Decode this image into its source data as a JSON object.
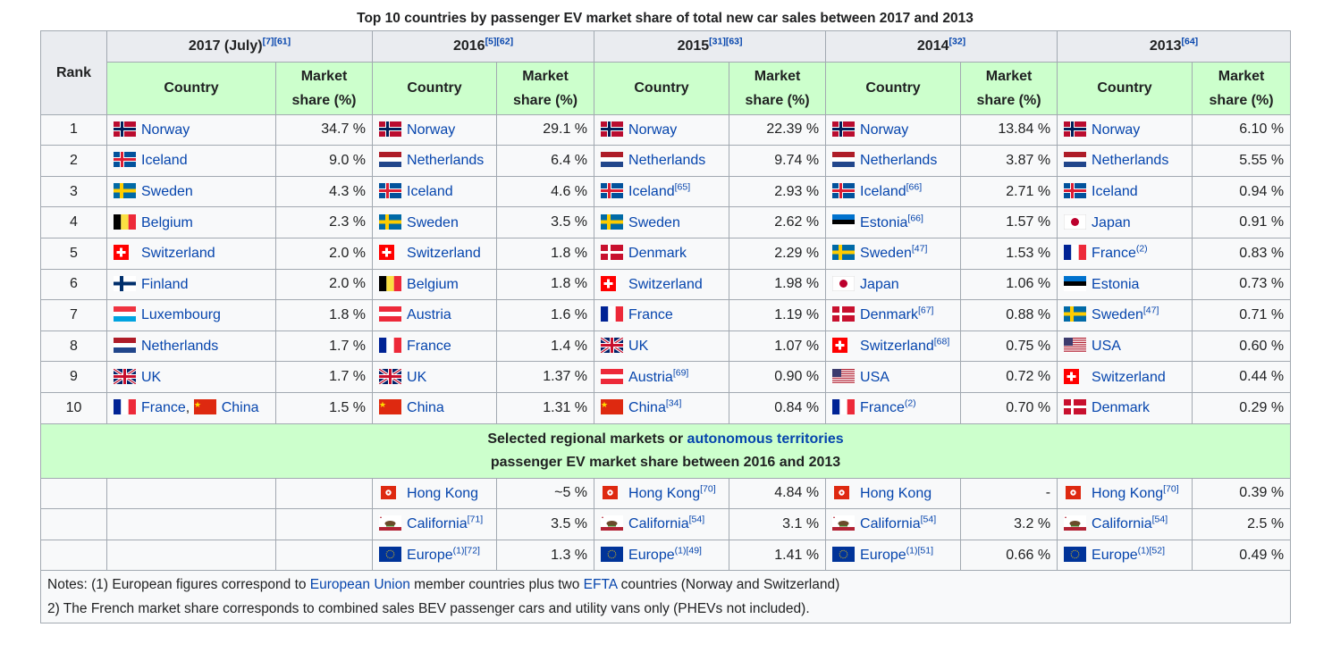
{
  "caption": "Top 10 countries by passenger EV market share of total new car sales between 2017 and 2013",
  "header": {
    "rank": "Rank",
    "country": "Country",
    "share_line1": "Market",
    "share_line2": "share (%)",
    "years": [
      {
        "label": "2017 (July)",
        "refs": "[7][61]"
      },
      {
        "label": "2016",
        "refs": "[5][62]"
      },
      {
        "label": "2015",
        "refs": "[31][63]"
      },
      {
        "label": "2014",
        "refs": "[32]"
      },
      {
        "label": "2013",
        "refs": "[64]"
      }
    ]
  },
  "rows": [
    {
      "rank": "1",
      "cells": [
        {
          "flag": "norway",
          "country": "Norway",
          "ref": "",
          "share": "34.7 %"
        },
        {
          "flag": "norway",
          "country": "Norway",
          "ref": "",
          "share": "29.1 %"
        },
        {
          "flag": "norway",
          "country": "Norway",
          "ref": "",
          "share": "22.39 %"
        },
        {
          "flag": "norway",
          "country": "Norway",
          "ref": "",
          "share": "13.84 %"
        },
        {
          "flag": "norway",
          "country": "Norway",
          "ref": "",
          "share": "6.10 %"
        }
      ]
    },
    {
      "rank": "2",
      "cells": [
        {
          "flag": "iceland",
          "country": "Iceland",
          "ref": "",
          "share": "9.0 %"
        },
        {
          "flag": "netherlands",
          "country": "Netherlands",
          "ref": "",
          "share": "6.4 %"
        },
        {
          "flag": "netherlands",
          "country": "Netherlands",
          "ref": "",
          "share": "9.74 %"
        },
        {
          "flag": "netherlands",
          "country": "Netherlands",
          "ref": "",
          "share": "3.87 %"
        },
        {
          "flag": "netherlands",
          "country": "Netherlands",
          "ref": "",
          "share": "5.55 %"
        }
      ]
    },
    {
      "rank": "3",
      "cells": [
        {
          "flag": "sweden",
          "country": "Sweden",
          "ref": "",
          "share": "4.3 %"
        },
        {
          "flag": "iceland",
          "country": "Iceland",
          "ref": "",
          "share": "4.6 %"
        },
        {
          "flag": "iceland",
          "country": "Iceland",
          "ref": "[65]",
          "share": "2.93 %"
        },
        {
          "flag": "iceland",
          "country": "Iceland",
          "ref": "[66]",
          "share": "2.71 %"
        },
        {
          "flag": "iceland",
          "country": "Iceland",
          "ref": "",
          "share": "0.94 %"
        }
      ]
    },
    {
      "rank": "4",
      "cells": [
        {
          "flag": "belgium",
          "country": "Belgium",
          "ref": "",
          "share": "2.3 %"
        },
        {
          "flag": "sweden",
          "country": "Sweden",
          "ref": "",
          "share": "3.5 %"
        },
        {
          "flag": "sweden",
          "country": "Sweden",
          "ref": "",
          "share": "2.62 %"
        },
        {
          "flag": "estonia",
          "country": "Estonia",
          "ref": "[66]",
          "share": "1.57 %"
        },
        {
          "flag": "japan",
          "country": "Japan",
          "ref": "",
          "share": "0.91 %"
        }
      ]
    },
    {
      "rank": "5",
      "cells": [
        {
          "flag": "switzerland",
          "country": "Switzerland",
          "ref": "",
          "share": "2.0 %"
        },
        {
          "flag": "switzerland",
          "country": "Switzerland",
          "ref": "",
          "share": "1.8 %"
        },
        {
          "flag": "denmark",
          "country": "Denmark",
          "ref": "",
          "share": "2.29 %"
        },
        {
          "flag": "sweden",
          "country": "Sweden",
          "ref": "[47]",
          "share": "1.53 %"
        },
        {
          "flag": "france",
          "country": "France",
          "ref": "(2)",
          "share": "0.83 %"
        }
      ]
    },
    {
      "rank": "6",
      "cells": [
        {
          "flag": "finland",
          "country": "Finland",
          "ref": "",
          "share": "2.0 %"
        },
        {
          "flag": "belgium",
          "country": "Belgium",
          "ref": "",
          "share": "1.8 %"
        },
        {
          "flag": "switzerland",
          "country": "Switzerland",
          "ref": "",
          "share": "1.98 %"
        },
        {
          "flag": "japan",
          "country": "Japan",
          "ref": "",
          "share": "1.06 %"
        },
        {
          "flag": "estonia",
          "country": "Estonia",
          "ref": "",
          "share": "0.73 %"
        }
      ]
    },
    {
      "rank": "7",
      "cells": [
        {
          "flag": "luxembourg",
          "country": "Luxembourg",
          "ref": "",
          "share": "1.8 %"
        },
        {
          "flag": "austria",
          "country": "Austria",
          "ref": "",
          "share": "1.6 %"
        },
        {
          "flag": "france",
          "country": "France",
          "ref": "",
          "share": "1.19 %"
        },
        {
          "flag": "denmark",
          "country": "Denmark",
          "ref": "[67]",
          "share": "0.88 %"
        },
        {
          "flag": "sweden",
          "country": "Sweden",
          "ref": "[47]",
          "share": "0.71 %"
        }
      ]
    },
    {
      "rank": "8",
      "cells": [
        {
          "flag": "netherlands",
          "country": "Netherlands",
          "ref": "",
          "share": "1.7 %"
        },
        {
          "flag": "france",
          "country": "France",
          "ref": "",
          "share": "1.4 %"
        },
        {
          "flag": "uk",
          "country": "UK",
          "ref": "",
          "share": "1.07 %"
        },
        {
          "flag": "switzerland",
          "country": "Switzerland",
          "ref": "[68]",
          "share": "0.75 %"
        },
        {
          "flag": "usa",
          "country": "USA",
          "ref": "",
          "share": "0.60 %"
        }
      ]
    },
    {
      "rank": "9",
      "cells": [
        {
          "flag": "uk",
          "country": "UK",
          "ref": "",
          "share": "1.7 %"
        },
        {
          "flag": "uk",
          "country": "UK",
          "ref": "",
          "share": "1.37 %"
        },
        {
          "flag": "austria",
          "country": "Austria",
          "ref": "[69]",
          "share": "0.90 %"
        },
        {
          "flag": "usa",
          "country": "USA",
          "ref": "",
          "share": "0.72 %"
        },
        {
          "flag": "switzerland",
          "country": "Switzerland",
          "ref": "",
          "share": "0.44 %"
        }
      ]
    },
    {
      "rank": "10",
      "cells": [
        {
          "flag": "france",
          "country": "France",
          "ref": "",
          "share": "1.5 %",
          "extra_flag": "china",
          "extra_country": "China"
        },
        {
          "flag": "china",
          "country": "China",
          "ref": "",
          "share": "1.31 %"
        },
        {
          "flag": "china",
          "country": "China",
          "ref": "[34]",
          "share": "0.84 %"
        },
        {
          "flag": "france",
          "country": "France",
          "ref": "(2)",
          "share": "0.70 %"
        },
        {
          "flag": "denmark",
          "country": "Denmark",
          "ref": "",
          "share": "0.29 %"
        }
      ]
    }
  ],
  "regional_header": {
    "prefix": "Selected regional markets or ",
    "link": "autonomous territories",
    "line2": "passenger EV market share between 2016 and 2013"
  },
  "regional_rows": [
    {
      "cells": [
        {
          "flag": "hongkong",
          "country": "Hong Kong",
          "ref": "",
          "share": "~5 %"
        },
        {
          "flag": "hongkong",
          "country": "Hong Kong",
          "ref": "[70]",
          "share": "4.84 %"
        },
        {
          "flag": "hongkong",
          "country": "Hong Kong",
          "ref": "",
          "share": "-"
        },
        {
          "flag": "hongkong",
          "country": "Hong Kong",
          "ref": "[70]",
          "share": "0.39 %"
        }
      ]
    },
    {
      "cells": [
        {
          "flag": "california",
          "country": "California",
          "ref": "[71]",
          "share": "3.5 %"
        },
        {
          "flag": "california",
          "country": "California",
          "ref": "[54]",
          "share": "3.1 %"
        },
        {
          "flag": "california",
          "country": "California",
          "ref": "[54]",
          "share": "3.2 %"
        },
        {
          "flag": "california",
          "country": "California",
          "ref": "[54]",
          "share": "2.5 %"
        }
      ]
    },
    {
      "cells": [
        {
          "flag": "eu",
          "country": "Europe",
          "ref": "(1)[72]",
          "share": "1.3 %"
        },
        {
          "flag": "eu",
          "country": "Europe",
          "ref": "(1)[49]",
          "share": "1.41 %"
        },
        {
          "flag": "eu",
          "country": "Europe",
          "ref": "(1)[51]",
          "share": "0.66 %"
        },
        {
          "flag": "eu",
          "country": "Europe",
          "ref": "(1)[52]",
          "share": "0.49 %"
        }
      ]
    }
  ],
  "notes": {
    "line1_a": "Notes: (1) European figures correspond to ",
    "line1_link1": "European Union",
    "line1_b": " member countries plus two ",
    "line1_link2": "EFTA",
    "line1_c": " countries (Norway and Switzerland)",
    "line2": "2) The French market share corresponds to combined sales BEV passenger cars and utility vans only (PHEVs not included)."
  },
  "colors": {
    "header_bg": "#eaecf0",
    "subheader_bg": "#ccffcc",
    "cell_bg": "#f8f9fa",
    "border": "#a2a9b1",
    "link": "#0645ad"
  }
}
